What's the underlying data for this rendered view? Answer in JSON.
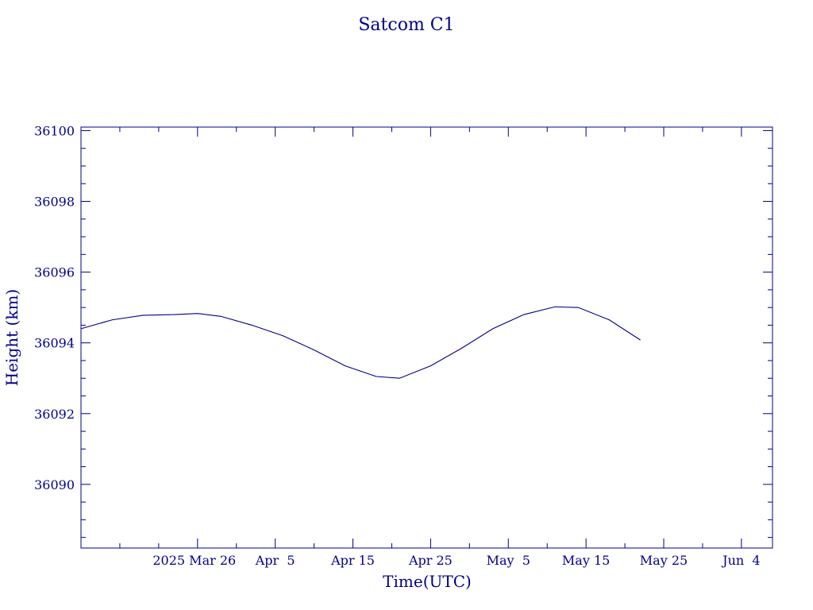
{
  "chart_data": {
    "type": "line",
    "title": "Satcom C1",
    "xlabel": "Time(UTC)",
    "ylabel": "Height (km)",
    "x_type": "date",
    "xlim": [
      "2025-03-11",
      "2025-06-08"
    ],
    "ylim": [
      36088.2,
      36100.1
    ],
    "x_ticks": [
      {
        "date": "2025-03-26",
        "label": "2025 Mar 26"
      },
      {
        "date": "2025-04-05",
        "label": "Apr  5"
      },
      {
        "date": "2025-04-15",
        "label": "Apr 15"
      },
      {
        "date": "2025-04-25",
        "label": "Apr 25"
      },
      {
        "date": "2025-05-05",
        "label": "May  5"
      },
      {
        "date": "2025-05-15",
        "label": "May 15"
      },
      {
        "date": "2025-05-25",
        "label": "May 25"
      },
      {
        "date": "2025-06-04",
        "label": "Jun  4"
      }
    ],
    "y_ticks": [
      36090,
      36092,
      36094,
      36096,
      36098,
      36100
    ],
    "y_minor_step": 0.5,
    "x_minor_step_days": 5,
    "grid": false,
    "series": [
      {
        "color": "#00008b",
        "points": [
          [
            "2025-03-11",
            36094.4
          ],
          [
            "2025-03-15",
            36094.65
          ],
          [
            "2025-03-19",
            36094.78
          ],
          [
            "2025-03-23",
            36094.8
          ],
          [
            "2025-03-26",
            36094.83
          ],
          [
            "2025-03-29",
            36094.75
          ],
          [
            "2025-04-02",
            36094.5
          ],
          [
            "2025-04-06",
            36094.2
          ],
          [
            "2025-04-10",
            36093.8
          ],
          [
            "2025-04-14",
            36093.35
          ],
          [
            "2025-04-18",
            36093.05
          ],
          [
            "2025-04-21",
            36093.0
          ],
          [
            "2025-04-25",
            36093.35
          ],
          [
            "2025-04-29",
            36093.85
          ],
          [
            "2025-05-03",
            36094.4
          ],
          [
            "2025-05-07",
            36094.8
          ],
          [
            "2025-05-11",
            36095.02
          ],
          [
            "2025-05-14",
            36095.0
          ],
          [
            "2025-05-18",
            36094.65
          ],
          [
            "2025-05-22",
            36094.08
          ]
        ]
      }
    ]
  }
}
